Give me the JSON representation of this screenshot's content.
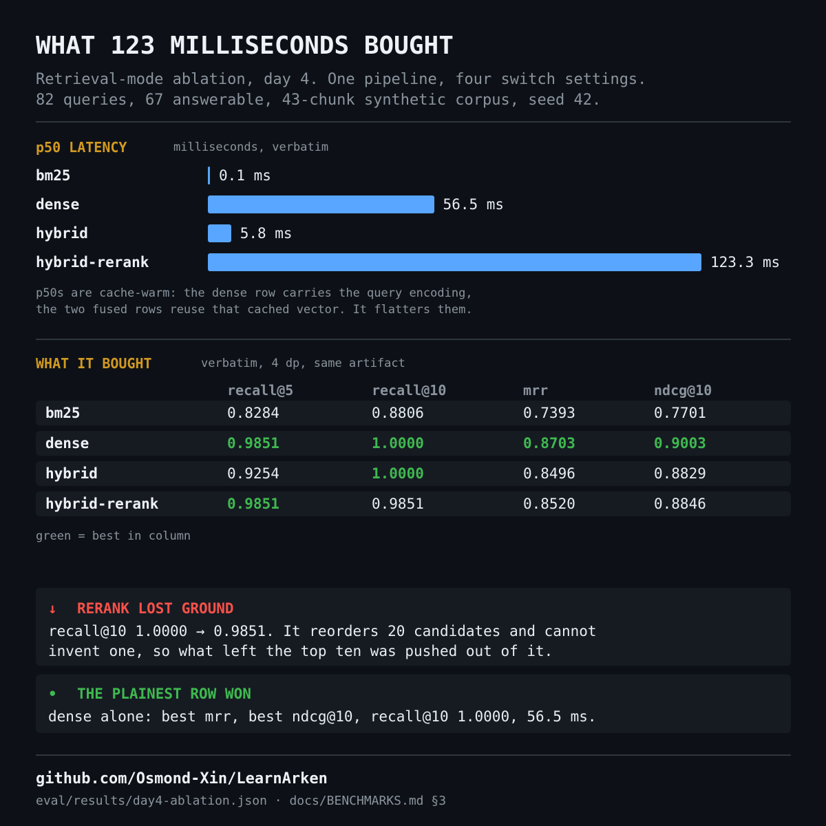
{
  "header": {
    "title": "WHAT 123 MILLISECONDS BOUGHT",
    "subtitle_lines": [
      "Retrieval-mode ablation, day 4. One pipeline, four switch settings.",
      "82 queries, 67 answerable, 43-chunk synthetic corpus, seed 42."
    ]
  },
  "latency": {
    "heading": "p50 LATENCY",
    "note": "milliseconds, verbatim",
    "footnote_lines": [
      "p50s are cache-warm: the dense row carries the query encoding,",
      "the two fused rows reuse that cached vector. It flatters them."
    ]
  },
  "chart_data": {
    "type": "bar",
    "orientation": "horizontal",
    "title": "p50 LATENCY",
    "unit": "ms",
    "categories": [
      "bm25",
      "dense",
      "hybrid",
      "hybrid-rerank"
    ],
    "values": [
      0.1,
      56.5,
      5.8,
      123.3
    ],
    "value_labels": [
      "0.1 ms",
      "56.5 ms",
      "5.8 ms",
      "123.3 ms"
    ],
    "color": "#58a6ff",
    "xlim": [
      0,
      123.3
    ]
  },
  "metrics": {
    "heading": "WHAT IT BOUGHT",
    "note": "verbatim, 4 dp, same artifact",
    "columns": [
      "recall@5",
      "recall@10",
      "mrr",
      "ndcg@10"
    ],
    "rows": [
      {
        "name": "bm25",
        "cells": [
          {
            "value": "0.8284",
            "best": false
          },
          {
            "value": "0.8806",
            "best": false
          },
          {
            "value": "0.7393",
            "best": false
          },
          {
            "value": "0.7701",
            "best": false
          }
        ]
      },
      {
        "name": "dense",
        "cells": [
          {
            "value": "0.9851",
            "best": true
          },
          {
            "value": "1.0000",
            "best": true
          },
          {
            "value": "0.8703",
            "best": true
          },
          {
            "value": "0.9003",
            "best": true
          }
        ]
      },
      {
        "name": "hybrid",
        "cells": [
          {
            "value": "0.9254",
            "best": false
          },
          {
            "value": "1.0000",
            "best": true
          },
          {
            "value": "0.8496",
            "best": false
          },
          {
            "value": "0.8829",
            "best": false
          }
        ]
      },
      {
        "name": "hybrid-rerank",
        "cells": [
          {
            "value": "0.9851",
            "best": true
          },
          {
            "value": "0.9851",
            "best": false
          },
          {
            "value": "0.8520",
            "best": false
          },
          {
            "value": "0.8846",
            "best": false
          }
        ]
      }
    ],
    "legend": "green = best in column",
    "best_color": "#3fb950"
  },
  "callouts": [
    {
      "icon": "↓",
      "icon_name": "down-arrow-icon",
      "heading": "RERANK LOST GROUND",
      "color": "#f85149",
      "body_lines": [
        "recall@10 1.0000 → 0.9851. It reorders 20 candidates and cannot",
        "invent one, so what left the top ten was pushed out of it."
      ]
    },
    {
      "icon": "•",
      "icon_name": "bullet-icon",
      "heading": "THE PLAINEST ROW WON",
      "color": "#3fb950",
      "body_lines": [
        "dense alone: best mrr, best ndcg@10, recall@10 1.0000, 56.5 ms."
      ]
    }
  ],
  "footer": {
    "repo": "github.com/Osmond-Xin/LearnArken",
    "paths": "eval/results/day4-ablation.json · docs/BENCHMARKS.md §3"
  }
}
